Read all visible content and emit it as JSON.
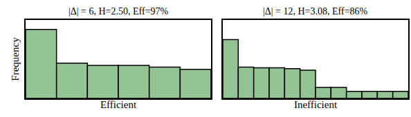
{
  "chart_data": [
    {
      "type": "histogram",
      "title": "|Δ| = 6, H=2.50, Eff=97%",
      "x_label": "Efficient",
      "y_label": "Frequency",
      "bins": [
        0,
        1,
        2,
        3,
        4,
        5,
        6
      ],
      "values": [
        0.88,
        0.45,
        0.42,
        0.42,
        0.4,
        0.37
      ],
      "color": "#93c393",
      "xlim": [
        0,
        6
      ],
      "ylim": [
        0,
        1
      ],
      "xticks": [],
      "yticks": [],
      "tick_labels": false,
      "grid": false
    },
    {
      "type": "histogram",
      "title": "|Δ| = 12, H=3.08, Eff=86%",
      "x_label": "Inefficient",
      "bins": [
        0,
        1,
        2,
        3,
        4,
        5,
        6,
        7,
        8,
        9,
        10,
        11,
        12
      ],
      "values": [
        0.75,
        0.4,
        0.39,
        0.39,
        0.38,
        0.36,
        0.14,
        0.14,
        0.09,
        0.09,
        0.09,
        0.09
      ],
      "color": "#93c393",
      "xlim": [
        0,
        12
      ],
      "ylim": [
        0,
        1
      ],
      "xticks": [],
      "yticks": [],
      "tick_labels": false,
      "grid": false
    }
  ]
}
